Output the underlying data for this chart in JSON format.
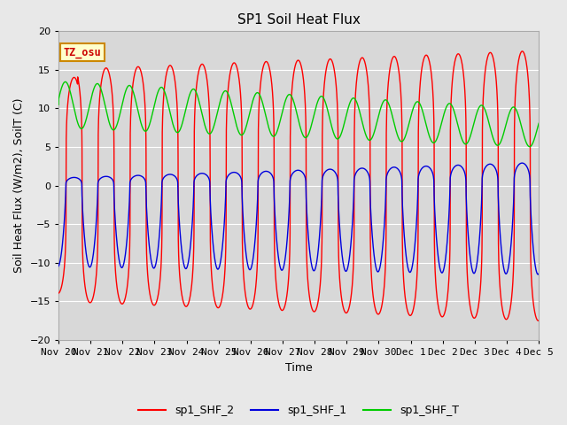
{
  "title": "SP1 Soil Heat Flux",
  "xlabel": "Time",
  "ylabel": "Soil Heat Flux (W/m2), SoilT (C)",
  "ylim": [
    -20,
    20
  ],
  "tick_labels": [
    "Nov 20",
    "Nov 21",
    "Nov 22",
    "Nov 23",
    "Nov 24",
    "Nov 25",
    "Nov 26",
    "Nov 27",
    "Nov 28",
    "Nov 29",
    "Nov 30",
    "Dec 1",
    "Dec 2",
    "Dec 3",
    "Dec 4",
    "Dec 5"
  ],
  "color_shf2": "#ff0000",
  "color_shf1": "#0000dd",
  "color_shft": "#00cc00",
  "legend_labels": [
    "sp1_SHF_2",
    "sp1_SHF_1",
    "sp1_SHF_T"
  ],
  "annotation_text": "TZ_osu",
  "annotation_color": "#cc0000",
  "annotation_bg": "#ffffcc",
  "annotation_border": "#cc8800",
  "plot_bg_color": "#d8d8d8",
  "fig_bg_color": "#e8e8e8",
  "grid_color": "#ffffff",
  "title_fontsize": 11,
  "label_fontsize": 9,
  "tick_fontsize": 8
}
